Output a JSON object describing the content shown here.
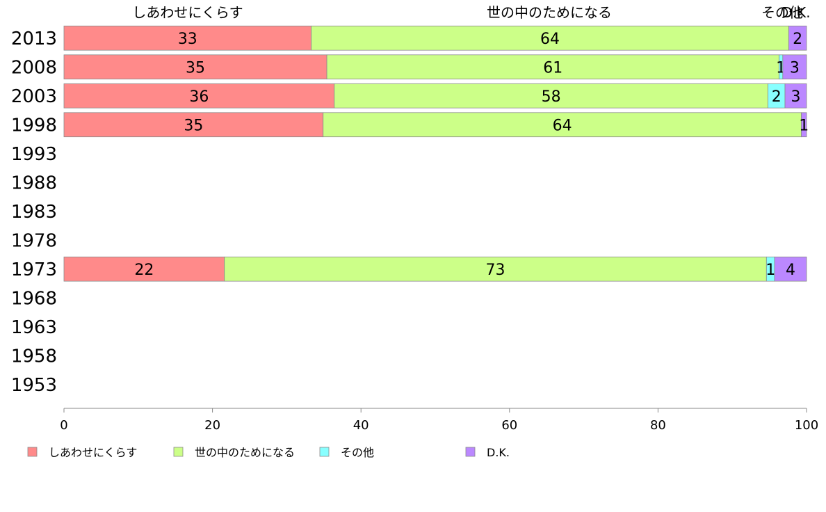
{
  "chart_data": {
    "type": "bar",
    "orientation": "horizontal",
    "stacked": true,
    "categories": [
      "2013",
      "2008",
      "2003",
      "1998",
      "1993",
      "1988",
      "1983",
      "1978",
      "1973",
      "1968",
      "1963",
      "1958",
      "1953"
    ],
    "series": [
      {
        "name": "しあわせにくらす",
        "color": "#ff8a8a",
        "values": [
          33.3,
          35.4,
          36.4,
          34.9,
          null,
          null,
          null,
          null,
          21.6,
          null,
          null,
          null,
          null
        ],
        "labels": [
          "33",
          "35",
          "36",
          "35",
          "",
          "",
          "",
          "",
          "22",
          "",
          "",
          "",
          ""
        ]
      },
      {
        "name": "世の中のためになる",
        "color": "#ccff88",
        "values": [
          64.3,
          60.9,
          58.4,
          64.4,
          null,
          null,
          null,
          null,
          73.0,
          null,
          null,
          null,
          null
        ],
        "labels": [
          "64",
          "61",
          "58",
          "64",
          "",
          "",
          "",
          "",
          "73",
          "",
          "",
          "",
          ""
        ]
      },
      {
        "name": "その他",
        "color": "#88ffff",
        "values": [
          0,
          0.5,
          2.3,
          0,
          null,
          null,
          null,
          null,
          1.1,
          null,
          null,
          null,
          null
        ],
        "labels": [
          "",
          "1",
          "2",
          "",
          "",
          "",
          "",
          "",
          "1",
          "",
          "",
          "",
          ""
        ]
      },
      {
        "name": "D.K.",
        "color": "#bb88ff",
        "values": [
          2.4,
          3.2,
          2.9,
          0.7,
          null,
          null,
          null,
          null,
          4.3,
          null,
          null,
          null,
          null
        ],
        "labels": [
          "2",
          "3",
          "3",
          "1",
          "",
          "",
          "",
          "",
          "4",
          "",
          "",
          "",
          ""
        ]
      }
    ],
    "top_labels": [
      "しあわせにくらす",
      "世の中のためになる",
      "その他",
      "D.K."
    ],
    "xlim": [
      0,
      100
    ],
    "xticks": [
      "0",
      "20",
      "40",
      "60",
      "80",
      "100"
    ],
    "grid": false,
    "legend_position": "bottom",
    "legend": [
      "しあわせにくらす",
      "世の中のためになる",
      "その他",
      "D.K."
    ]
  }
}
